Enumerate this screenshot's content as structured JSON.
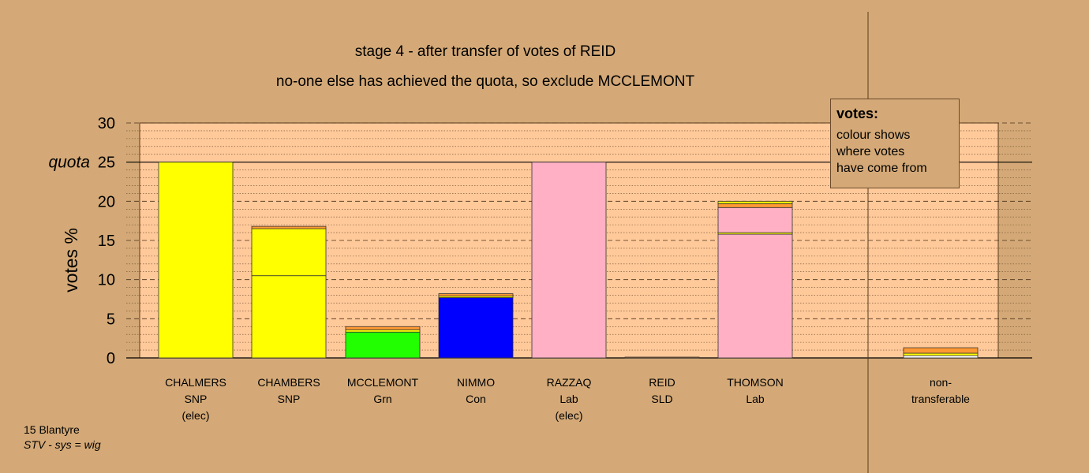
{
  "title": "stage 4 - after transfer of votes of REID",
  "subtitle": "no-one else has achieved the quota, so exclude MCCLEMONT",
  "legend": {
    "title": "votes:",
    "lines": [
      "colour shows",
      "where votes",
      "have come from"
    ]
  },
  "footer": {
    "line1": "15 Blantyre",
    "line2": "STV - sys = wig"
  },
  "chart_data": {
    "type": "bar",
    "stacked": true,
    "ylabel": "votes %",
    "ylim": [
      0,
      30
    ],
    "yticks": [
      0,
      5,
      10,
      15,
      20,
      25,
      30
    ],
    "quota": 25,
    "quota_label": "quota",
    "grid": true,
    "categories": [
      {
        "lines": [
          "CHALMERS",
          "SNP",
          "(elec)"
        ],
        "segments": [
          {
            "value": 25.0,
            "color": "#ffff00"
          }
        ]
      },
      {
        "lines": [
          "CHAMBERS",
          "SNP"
        ],
        "segments": [
          {
            "value": 10.5,
            "color": "#ffff00"
          },
          {
            "value": 6.0,
            "color": "#ffff00"
          },
          {
            "value": 0.3,
            "color": "#ff9933"
          }
        ]
      },
      {
        "lines": [
          "MCCLEMONT",
          "Grn"
        ],
        "segments": [
          {
            "value": 3.3,
            "color": "#22ff00"
          },
          {
            "value": 0.3,
            "color": "#ffff00"
          },
          {
            "value": 0.4,
            "color": "#ff9933"
          }
        ]
      },
      {
        "lines": [
          "NIMMO",
          "Con"
        ],
        "segments": [
          {
            "value": 7.7,
            "color": "#0000ff"
          },
          {
            "value": 0.2,
            "color": "#ffff00"
          },
          {
            "value": 0.3,
            "color": "#ff9933"
          }
        ]
      },
      {
        "lines": [
          "RAZZAQ",
          "Lab",
          "(elec)"
        ],
        "segments": [
          {
            "value": 25.0,
            "color": "#ffb0c4"
          }
        ]
      },
      {
        "lines": [
          "REID",
          "SLD"
        ],
        "segments": [
          {
            "value": 0.1,
            "color": "#ff9933"
          }
        ]
      },
      {
        "lines": [
          "THOMSON",
          "Lab"
        ],
        "segments": [
          {
            "value": 15.8,
            "color": "#ffb0c4"
          },
          {
            "value": 0.2,
            "color": "#ffff00"
          },
          {
            "value": 3.2,
            "color": "#ffb0c4"
          },
          {
            "value": 0.5,
            "color": "#ff9933"
          },
          {
            "value": 0.3,
            "color": "#ffff00"
          }
        ]
      },
      {
        "lines": [
          "non-",
          "transferable"
        ],
        "segments": [
          {
            "value": 0.3,
            "color": "#ffffff"
          },
          {
            "value": 0.3,
            "color": "#ffff00"
          },
          {
            "value": 0.7,
            "color": "#ff9933"
          }
        ]
      }
    ]
  }
}
